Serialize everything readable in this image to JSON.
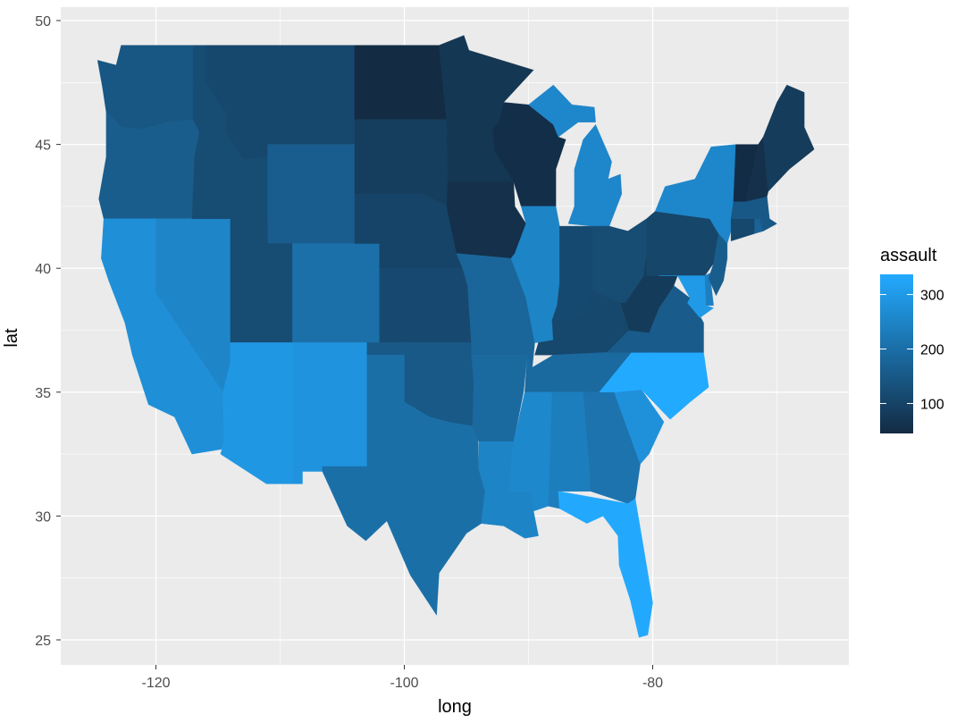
{
  "chart_data": {
    "type": "choropleth-map",
    "xlabel": "long",
    "ylabel": "lat",
    "xlim": [
      -127.5,
      -65.5
    ],
    "ylim": [
      24.3,
      50.2
    ],
    "x_ticks": [
      -120,
      -100,
      -80
    ],
    "y_ticks": [
      25,
      30,
      35,
      40,
      45,
      50
    ],
    "x_tick_labels": [
      "-120",
      "-100",
      "-80"
    ],
    "y_tick_labels": [
      "25",
      "30",
      "35",
      "40",
      "45",
      "50"
    ],
    "legend": {
      "title": "assault",
      "position": "right",
      "breaks": [
        100,
        200,
        300
      ],
      "break_labels": [
        "100",
        "200",
        "300"
      ],
      "limits": [
        45,
        337
      ],
      "low_color": "#132B43",
      "high_color": "#22AAFF"
    },
    "colors": {
      "panel_bg": "#EBEBEB",
      "grid": "#FFFFFF"
    },
    "states": [
      {
        "name": "washington",
        "value": 145
      },
      {
        "name": "oregon",
        "value": 159
      },
      {
        "name": "california",
        "value": 276
      },
      {
        "name": "nevada",
        "value": 252
      },
      {
        "name": "idaho",
        "value": 120
      },
      {
        "name": "montana",
        "value": 109
      },
      {
        "name": "wyoming",
        "value": 161
      },
      {
        "name": "utah",
        "value": 120
      },
      {
        "name": "arizona",
        "value": 294
      },
      {
        "name": "colorado",
        "value": 204
      },
      {
        "name": "new mexico",
        "value": 285
      },
      {
        "name": "north dakota",
        "value": 45
      },
      {
        "name": "south dakota",
        "value": 86
      },
      {
        "name": "nebraska",
        "value": 102
      },
      {
        "name": "kansas",
        "value": 115
      },
      {
        "name": "oklahoma",
        "value": 151
      },
      {
        "name": "texas",
        "value": 201
      },
      {
        "name": "minnesota",
        "value": 72
      },
      {
        "name": "iowa",
        "value": 56
      },
      {
        "name": "missouri",
        "value": 178
      },
      {
        "name": "arkansas",
        "value": 190
      },
      {
        "name": "louisiana",
        "value": 249
      },
      {
        "name": "wisconsin",
        "value": 53
      },
      {
        "name": "illinois",
        "value": 249
      },
      {
        "name": "michigan",
        "value": 255
      },
      {
        "name": "indiana",
        "value": 113
      },
      {
        "name": "ohio",
        "value": 120
      },
      {
        "name": "kentucky",
        "value": 109
      },
      {
        "name": "tennessee",
        "value": 188
      },
      {
        "name": "mississippi",
        "value": 259
      },
      {
        "name": "alabama",
        "value": 236
      },
      {
        "name": "georgia",
        "value": 211
      },
      {
        "name": "florida",
        "value": 335
      },
      {
        "name": "south carolina",
        "value": 279
      },
      {
        "name": "north carolina",
        "value": 337
      },
      {
        "name": "virginia",
        "value": 156
      },
      {
        "name": "west virginia",
        "value": 81
      },
      {
        "name": "pennsylvania",
        "value": 106
      },
      {
        "name": "new york",
        "value": 254
      },
      {
        "name": "maryland",
        "value": 300
      },
      {
        "name": "delaware",
        "value": 238
      },
      {
        "name": "new jersey",
        "value": 159
      },
      {
        "name": "connecticut",
        "value": 110
      },
      {
        "name": "rhode island",
        "value": 174
      },
      {
        "name": "massachusetts",
        "value": 149
      },
      {
        "name": "vermont",
        "value": 48
      },
      {
        "name": "new hampshire",
        "value": 57
      },
      {
        "name": "maine",
        "value": 83
      }
    ]
  }
}
